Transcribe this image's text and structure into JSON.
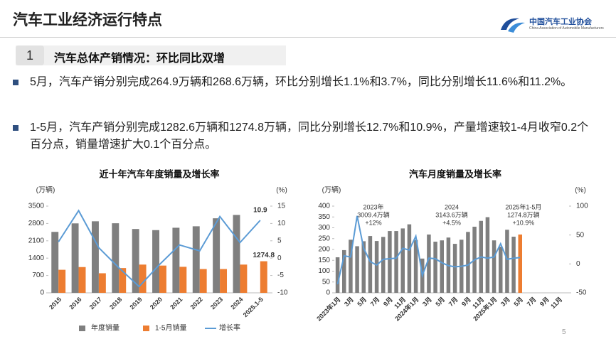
{
  "header": {
    "title": "汽车工业经济运行特点",
    "logo_name": "中国汽车工业协会",
    "logo_subtitle": "China Association of Automobile Manufacturers"
  },
  "section": {
    "number": "1",
    "title": "汽车总体产销情况：环比同比双增"
  },
  "bullets": [
    "5月，汽车产销分别完成264.9万辆和268.6万辆，环比分别增长1.1%和3.7%，同比分别增长11.6%和11.2%。",
    "1-5月，汽车产销分别完成1282.6万辆和1274.8万辆，同比分别增长12.7%和10.9%，产量增速较1-4月收窄0.2个百分点，销量增速扩大0.1个百分点。"
  ],
  "page_number": "5",
  "chart_data": [
    {
      "type": "bar",
      "title": "近十年汽车年度销量及增长率",
      "y_label": "(万辆)",
      "y2_label": "(%)",
      "categories": [
        "2015",
        "2016",
        "2017",
        "2018",
        "2019",
        "2020",
        "2021",
        "2022",
        "2023",
        "2024",
        "2025.1-5"
      ],
      "series": [
        {
          "name": "年度销量",
          "color": "#7f7f7f",
          "values": [
            2460,
            2803,
            2888,
            2808,
            2577,
            2531,
            2627,
            2686,
            3009,
            3144,
            null
          ]
        },
        {
          "name": "1-5月销量",
          "color": "#ed7d31",
          "values": [
            930,
            1040,
            790,
            1000,
            1140,
            1100,
            1050,
            960,
            960,
            1140,
            1274.8
          ]
        },
        {
          "name": "增长率",
          "color": "#5b9bd5",
          "axis": "y2",
          "values": [
            4.7,
            13.7,
            3.0,
            -2.8,
            -8.2,
            -1.9,
            3.8,
            2.1,
            12.0,
            4.5,
            10.9
          ]
        }
      ],
      "ylim": [
        0,
        3500
      ],
      "yticks": [
        0,
        700,
        1400,
        2100,
        2800,
        3500
      ],
      "y2lim": [
        -10,
        15
      ],
      "y2ticks": [
        -10,
        -5,
        0,
        5,
        10,
        15
      ]
    },
    {
      "type": "bar",
      "title": "汽车月度销量及增长率",
      "y_label": "(万辆)",
      "y2_label": "(%)",
      "stacked": true,
      "categories": [
        "2023年1月",
        null,
        "3月",
        null,
        "5月",
        null,
        "7月",
        null,
        "9月",
        null,
        "11月",
        null,
        "2024年1月",
        null,
        "3月",
        null,
        "5月",
        null,
        "7月",
        null,
        "9月",
        null,
        "11月",
        null,
        "2025年1月",
        null,
        "3月",
        null,
        "5月",
        null,
        "7月",
        null,
        "9月",
        null,
        "11月",
        null
      ],
      "series": [
        {
          "color": "#7f7f7f",
          "values": [
            164,
            197,
            245,
            215,
            238,
            262,
            239,
            258,
            285,
            285,
            297,
            316,
            244,
            158,
            269,
            236,
            242,
            255,
            226,
            245,
            281,
            305,
            332,
            349,
            242,
            213,
            291,
            259,
            null,
            null,
            null,
            null,
            null,
            null,
            null,
            null
          ]
        },
        {
          "color": "#ed7d31",
          "values": [
            null,
            null,
            null,
            null,
            null,
            null,
            null,
            null,
            null,
            null,
            null,
            null,
            null,
            null,
            null,
            null,
            null,
            null,
            null,
            null,
            null,
            null,
            null,
            null,
            null,
            null,
            null,
            null,
            269,
            null,
            null,
            null,
            null,
            null,
            null,
            null
          ]
        },
        {
          "color": "#5b9bd5",
          "axis": "y2",
          "values": [
            -35,
            14,
            12,
            83,
            27,
            4,
            -2,
            8,
            9,
            10,
            27,
            24,
            48,
            -20,
            10,
            9,
            2,
            -3,
            -5,
            -4,
            -2,
            7,
            12,
            10,
            12,
            35,
            8,
            10,
            11,
            null,
            null,
            null,
            null,
            null,
            null,
            null
          ]
        }
      ],
      "annotations": [
        [
          "2023年",
          "3009.4万辆",
          "+12%"
        ],
        [
          "2024",
          "3143.6万辆",
          "+4.5%"
        ],
        [
          "2025年1-5月",
          "1274.8万辆",
          "+10.9%"
        ]
      ],
      "ylim": [
        0,
        400
      ],
      "yticks": [
        0,
        50,
        100,
        150,
        200,
        250,
        300,
        350,
        400
      ],
      "y2lim": [
        -50,
        100
      ],
      "y2ticks": [
        -50,
        0,
        50,
        100
      ]
    }
  ]
}
